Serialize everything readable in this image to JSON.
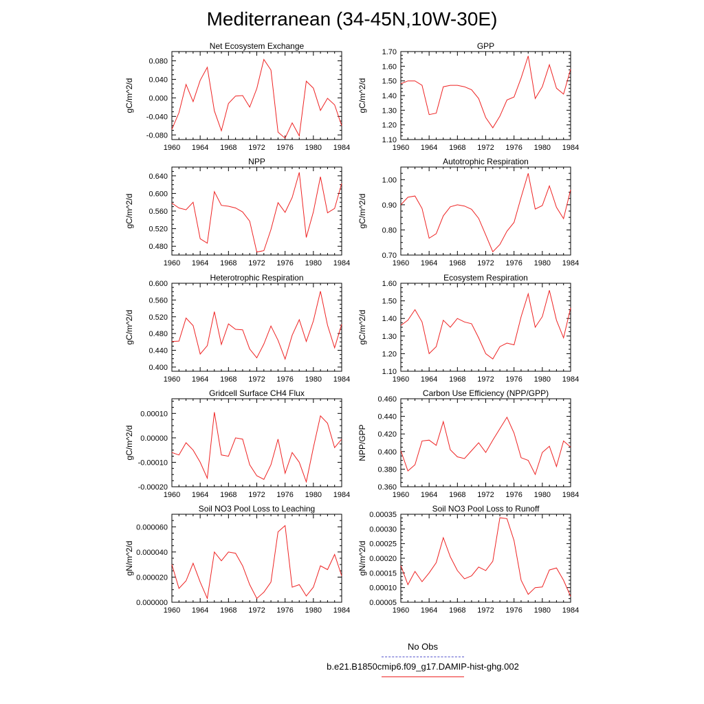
{
  "title": "Mediterranean (34-45N,10W-30E)",
  "legend": {
    "entries": [
      {
        "label": "No Obs",
        "color": "#5555cc",
        "style": "dashed"
      },
      {
        "label": "b.e21.B1850cmip6.f09_g17.DAMIP-hist-ghg.002",
        "color": "#ee2222",
        "style": "solid"
      }
    ]
  },
  "chart_data": [
    {
      "type": "line",
      "title": "Net Ecosystem Exchange",
      "ylabel": "gC/m^2/d",
      "xlim": [
        1960,
        1984
      ],
      "ylim": [
        -0.09,
        0.1
      ],
      "xticks": [
        "1960",
        "1964",
        "1968",
        "1972",
        "1976",
        "1980",
        "1984"
      ],
      "yticks": [
        "0.080",
        "0.040",
        "0.000",
        "-0.040",
        "-0.080"
      ],
      "ytick_values": [
        0.08,
        0.04,
        0.0,
        -0.04,
        -0.08
      ],
      "x": [
        1960,
        1961,
        1962,
        1963,
        1964,
        1965,
        1966,
        1967,
        1968,
        1969,
        1970,
        1971,
        1972,
        1973,
        1974,
        1975,
        1976,
        1977,
        1978,
        1979,
        1980,
        1981,
        1982,
        1983,
        1984
      ],
      "series": [
        {
          "color": "#ee2222",
          "values": [
            -0.068,
            -0.032,
            0.029,
            -0.008,
            0.038,
            0.066,
            -0.028,
            -0.071,
            -0.012,
            0.004,
            0.005,
            -0.02,
            0.02,
            0.083,
            0.06,
            -0.074,
            -0.087,
            -0.054,
            -0.082,
            0.036,
            0.021,
            -0.027,
            -0.001,
            -0.015,
            -0.06
          ]
        }
      ]
    },
    {
      "type": "line",
      "title": "GPP",
      "ylabel": "gC/m^2/d",
      "xlim": [
        1960,
        1984
      ],
      "ylim": [
        1.1,
        1.7
      ],
      "xticks": [
        "1960",
        "1964",
        "1968",
        "1972",
        "1976",
        "1980",
        "1984"
      ],
      "yticks": [
        "1.70",
        "1.60",
        "1.50",
        "1.40",
        "1.30",
        "1.20",
        "1.10"
      ],
      "ytick_values": [
        1.7,
        1.6,
        1.5,
        1.4,
        1.3,
        1.2,
        1.1
      ],
      "x": [
        1960,
        1961,
        1962,
        1963,
        1964,
        1965,
        1966,
        1967,
        1968,
        1969,
        1970,
        1971,
        1972,
        1973,
        1974,
        1975,
        1976,
        1977,
        1978,
        1979,
        1980,
        1981,
        1982,
        1983,
        1984
      ],
      "series": [
        {
          "color": "#ee2222",
          "values": [
            1.48,
            1.5,
            1.5,
            1.47,
            1.27,
            1.28,
            1.46,
            1.47,
            1.47,
            1.46,
            1.44,
            1.38,
            1.25,
            1.18,
            1.26,
            1.37,
            1.39,
            1.52,
            1.67,
            1.38,
            1.46,
            1.61,
            1.45,
            1.41,
            1.58
          ]
        }
      ]
    },
    {
      "type": "line",
      "title": "NPP",
      "ylabel": "gC/m^2/d",
      "xlim": [
        1960,
        1984
      ],
      "ylim": [
        0.46,
        0.66
      ],
      "xticks": [
        "1960",
        "1964",
        "1968",
        "1972",
        "1976",
        "1980",
        "1984"
      ],
      "yticks": [
        "0.640",
        "0.600",
        "0.560",
        "0.520",
        "0.480"
      ],
      "ytick_values": [
        0.64,
        0.6,
        0.56,
        0.52,
        0.48
      ],
      "x": [
        1960,
        1961,
        1962,
        1963,
        1964,
        1965,
        1966,
        1967,
        1968,
        1969,
        1970,
        1971,
        1972,
        1973,
        1974,
        1975,
        1976,
        1977,
        1978,
        1979,
        1980,
        1981,
        1982,
        1983,
        1984
      ],
      "series": [
        {
          "color": "#ee2222",
          "values": [
            0.578,
            0.567,
            0.563,
            0.58,
            0.497,
            0.487,
            0.604,
            0.573,
            0.571,
            0.567,
            0.558,
            0.537,
            0.467,
            0.47,
            0.518,
            0.579,
            0.557,
            0.591,
            0.648,
            0.5,
            0.558,
            0.638,
            0.556,
            0.566,
            0.623
          ]
        }
      ]
    },
    {
      "type": "line",
      "title": "Autotrophic Respiration",
      "ylabel": "gC/m^2/d",
      "xlim": [
        1960,
        1984
      ],
      "ylim": [
        0.7,
        1.05
      ],
      "xticks": [
        "1960",
        "1964",
        "1968",
        "1972",
        "1976",
        "1980",
        "1984"
      ],
      "yticks": [
        "1.00",
        "0.90",
        "0.80",
        "0.70"
      ],
      "ytick_values": [
        1.0,
        0.9,
        0.8,
        0.7
      ],
      "x": [
        1960,
        1961,
        1962,
        1963,
        1964,
        1965,
        1966,
        1967,
        1968,
        1969,
        1970,
        1971,
        1972,
        1973,
        1974,
        1975,
        1976,
        1977,
        1978,
        1979,
        1980,
        1981,
        1982,
        1983,
        1984
      ],
      "series": [
        {
          "color": "#ee2222",
          "values": [
            0.9,
            0.93,
            0.935,
            0.885,
            0.767,
            0.785,
            0.856,
            0.892,
            0.9,
            0.895,
            0.882,
            0.846,
            0.78,
            0.713,
            0.742,
            0.795,
            0.83,
            0.93,
            1.025,
            0.883,
            0.897,
            0.975,
            0.89,
            0.845,
            0.96
          ]
        }
      ]
    },
    {
      "type": "line",
      "title": "Heterotrophic Respiration",
      "ylabel": "gC/m^2/d",
      "xlim": [
        1960,
        1984
      ],
      "ylim": [
        0.39,
        0.6
      ],
      "xticks": [
        "1960",
        "1964",
        "1968",
        "1972",
        "1976",
        "1980",
        "1984"
      ],
      "yticks": [
        "0.600",
        "0.560",
        "0.520",
        "0.480",
        "0.440",
        "0.400"
      ],
      "ytick_values": [
        0.6,
        0.56,
        0.52,
        0.48,
        0.44,
        0.4
      ],
      "x": [
        1960,
        1961,
        1962,
        1963,
        1964,
        1965,
        1966,
        1967,
        1968,
        1969,
        1970,
        1971,
        1972,
        1973,
        1974,
        1975,
        1976,
        1977,
        1978,
        1979,
        1980,
        1981,
        1982,
        1983,
        1984
      ],
      "series": [
        {
          "color": "#ee2222",
          "values": [
            0.461,
            0.462,
            0.517,
            0.499,
            0.431,
            0.451,
            0.532,
            0.454,
            0.503,
            0.49,
            0.489,
            0.443,
            0.422,
            0.455,
            0.498,
            0.464,
            0.419,
            0.476,
            0.513,
            0.461,
            0.51,
            0.581,
            0.5,
            0.446,
            0.502
          ]
        }
      ]
    },
    {
      "type": "line",
      "title": "Ecosystem Respiration",
      "ylabel": "gC/m^2/d",
      "xlim": [
        1960,
        1984
      ],
      "ylim": [
        1.1,
        1.6
      ],
      "xticks": [
        "1960",
        "1964",
        "1968",
        "1972",
        "1976",
        "1980",
        "1984"
      ],
      "yticks": [
        "1.60",
        "1.50",
        "1.40",
        "1.30",
        "1.20",
        "1.10"
      ],
      "ytick_values": [
        1.6,
        1.5,
        1.4,
        1.3,
        1.2,
        1.1
      ],
      "x": [
        1960,
        1961,
        1962,
        1963,
        1964,
        1965,
        1966,
        1967,
        1968,
        1969,
        1970,
        1971,
        1972,
        1973,
        1974,
        1975,
        1976,
        1977,
        1978,
        1979,
        1980,
        1981,
        1982,
        1983,
        1984
      ],
      "series": [
        {
          "color": "#ee2222",
          "values": [
            1.36,
            1.39,
            1.45,
            1.38,
            1.2,
            1.24,
            1.39,
            1.35,
            1.4,
            1.38,
            1.37,
            1.29,
            1.2,
            1.17,
            1.24,
            1.26,
            1.25,
            1.41,
            1.54,
            1.35,
            1.41,
            1.56,
            1.39,
            1.29,
            1.46
          ]
        }
      ]
    },
    {
      "type": "line",
      "title": "Gridcell Surface CH4 Flux",
      "ylabel": "gC/m^2/d",
      "xlim": [
        1960,
        1984
      ],
      "ylim": [
        -0.0002,
        0.00016
      ],
      "xticks": [
        "1960",
        "1964",
        "1968",
        "1972",
        "1976",
        "1980",
        "1984"
      ],
      "yticks": [
        "0.00010",
        "0.00000",
        "-0.00010",
        "-0.00020"
      ],
      "ytick_values": [
        0.0001,
        0.0,
        -0.0001,
        -0.0002
      ],
      "x": [
        1960,
        1961,
        1962,
        1963,
        1964,
        1965,
        1966,
        1967,
        1968,
        1969,
        1970,
        1971,
        1972,
        1973,
        1974,
        1975,
        1976,
        1977,
        1978,
        1979,
        1980,
        1981,
        1982,
        1983,
        1984
      ],
      "series": [
        {
          "color": "#ee2222",
          "values": [
            -6e-05,
            -7e-05,
            -2e-05,
            -5e-05,
            -0.0001,
            -0.000165,
            0.000105,
            -7e-05,
            -7.5e-05,
            0.0,
            -5e-06,
            -0.00011,
            -0.000155,
            -0.00017,
            -0.00011,
            -5e-06,
            -0.000145,
            -6e-05,
            -0.0001,
            -0.00018,
            -4e-05,
            9e-05,
            6e-05,
            -4e-05,
            -5e-06
          ]
        }
      ]
    },
    {
      "type": "line",
      "title": "Carbon Use Efficiency (NPP/GPP)",
      "ylabel": "NPP/GPP",
      "xlim": [
        1960,
        1984
      ],
      "ylim": [
        0.36,
        0.46
      ],
      "xticks": [
        "1960",
        "1964",
        "1968",
        "1972",
        "1976",
        "1980",
        "1984"
      ],
      "yticks": [
        "0.460",
        "0.440",
        "0.420",
        "0.400",
        "0.380",
        "0.360"
      ],
      "ytick_values": [
        0.46,
        0.44,
        0.42,
        0.4,
        0.38,
        0.36
      ],
      "x": [
        1960,
        1961,
        1962,
        1963,
        1964,
        1965,
        1966,
        1967,
        1968,
        1969,
        1970,
        1971,
        1972,
        1973,
        1974,
        1975,
        1976,
        1977,
        1978,
        1979,
        1980,
        1981,
        1982,
        1983,
        1984
      ],
      "series": [
        {
          "color": "#ee2222",
          "values": [
            0.401,
            0.378,
            0.385,
            0.412,
            0.413,
            0.407,
            0.434,
            0.402,
            0.394,
            0.392,
            0.401,
            0.41,
            0.399,
            0.413,
            0.426,
            0.439,
            0.421,
            0.393,
            0.39,
            0.374,
            0.399,
            0.406,
            0.383,
            0.412,
            0.405
          ]
        }
      ]
    },
    {
      "type": "line",
      "title": "Soil NO3 Pool Loss to Leaching",
      "ylabel": "gN/m^2/d",
      "xlim": [
        1960,
        1984
      ],
      "ylim": [
        0.0,
        7e-05
      ],
      "xticks": [
        "1960",
        "1964",
        "1968",
        "1972",
        "1976",
        "1980",
        "1984"
      ],
      "yticks": [
        "0.000060",
        "0.000040",
        "0.000020",
        "0.000000"
      ],
      "ytick_values": [
        6e-05,
        4e-05,
        2e-05,
        0.0
      ],
      "x": [
        1960,
        1961,
        1962,
        1963,
        1964,
        1965,
        1966,
        1967,
        1968,
        1969,
        1970,
        1971,
        1972,
        1973,
        1974,
        1975,
        1976,
        1977,
        1978,
        1979,
        1980,
        1981,
        1982,
        1983,
        1984
      ],
      "series": [
        {
          "color": "#ee2222",
          "values": [
            3e-05,
            1.1e-05,
            1.7e-05,
            3.1e-05,
            1.6e-05,
            3e-06,
            4e-05,
            3.3e-05,
            4e-05,
            3.9e-05,
            2.9e-05,
            1.4e-05,
            3e-06,
            8e-06,
            1.6e-05,
            5.6e-05,
            6.1e-05,
            1.2e-05,
            1.4e-05,
            5e-06,
            1.2e-05,
            2.9e-05,
            2.6e-05,
            3.8e-05,
            2.1e-05
          ]
        }
      ]
    },
    {
      "type": "line",
      "title": "Soil NO3 Pool Loss to Runoff",
      "ylabel": "gN/m^2/d",
      "xlim": [
        1960,
        1984
      ],
      "ylim": [
        5e-05,
        0.00035
      ],
      "xticks": [
        "1960",
        "1964",
        "1968",
        "1972",
        "1976",
        "1980",
        "1984"
      ],
      "yticks": [
        "0.00035",
        "0.00030",
        "0.00025",
        "0.00020",
        "0.00015",
        "0.00010",
        "0.00005"
      ],
      "ytick_values": [
        0.00035,
        0.0003,
        0.00025,
        0.0002,
        0.00015,
        0.0001,
        5e-05
      ],
      "x": [
        1960,
        1961,
        1962,
        1963,
        1964,
        1965,
        1966,
        1967,
        1968,
        1969,
        1970,
        1971,
        1972,
        1973,
        1974,
        1975,
        1976,
        1977,
        1978,
        1979,
        1980,
        1981,
        1982,
        1983,
        1984
      ],
      "series": [
        {
          "color": "#ee2222",
          "values": [
            0.000175,
            0.00011,
            0.000155,
            0.00012,
            0.00015,
            0.000185,
            0.00027,
            0.000205,
            0.000158,
            0.00013,
            0.00014,
            0.00017,
            0.000158,
            0.00019,
            0.000338,
            0.000335,
            0.00026,
            0.000125,
            7.7e-05,
            0.0001,
            0.000102,
            0.00016,
            0.000167,
            0.000125,
            7e-05
          ]
        }
      ]
    }
  ]
}
